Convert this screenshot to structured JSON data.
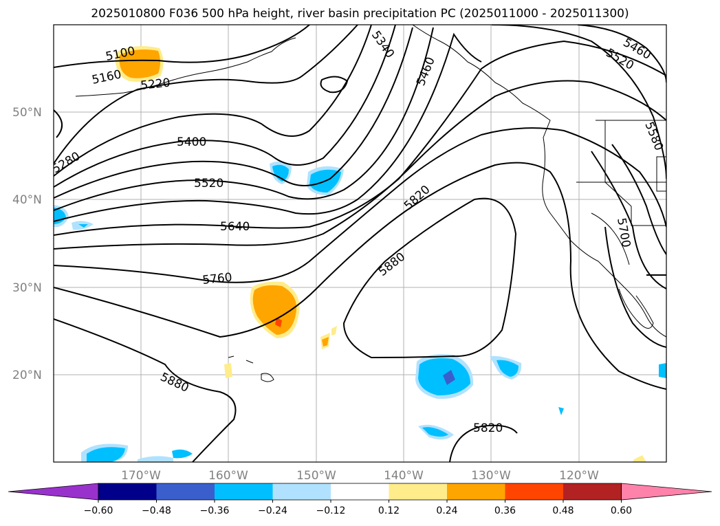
{
  "title": "2025010800 F036 500 hPa height, river basin precipitation PC (2025011000 - 2025011300)",
  "map": {
    "lat_labels": [
      "50°N",
      "40°N",
      "30°N",
      "20°N"
    ],
    "lon_labels": [
      "170°W",
      "160°W",
      "150°W",
      "140°W",
      "130°W",
      "120°W"
    ],
    "contour_labels": [
      "5100",
      "5160",
      "5220",
      "5280",
      "5340",
      "5400",
      "5520",
      "5640",
      "5760",
      "5880",
      "5880",
      "5820",
      "5880",
      "5820",
      "5460",
      "5460",
      "5520",
      "5580",
      "5700"
    ]
  },
  "colorbar": {
    "ticks": [
      "−0.60",
      "−0.48",
      "−0.36",
      "−0.24",
      "−0.12",
      "0.12",
      "0.24",
      "0.36",
      "0.48",
      "0.60"
    ],
    "colors": [
      "#9932cc",
      "#00008b",
      "#3a5fcd",
      "#00bfff",
      "#b0e2ff",
      "#ffffff",
      "#ffec8b",
      "#ffa500",
      "#ff4500",
      "#b22222",
      "#ff82ab"
    ]
  }
}
